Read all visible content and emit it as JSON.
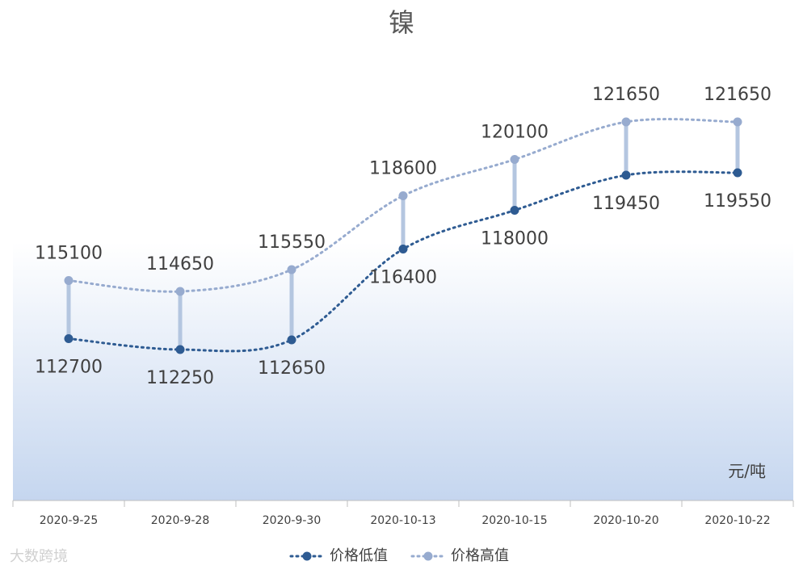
{
  "chart_data": {
    "type": "line",
    "title": "镍",
    "unit": "元/吨",
    "watermark": "大数跨境",
    "categories": [
      "2020-9-25",
      "2020-9-28",
      "2020-9-30",
      "2020-10-13",
      "2020-10-15",
      "2020-10-20",
      "2020-10-22"
    ],
    "series": [
      {
        "name": "价格低值",
        "color": "#2e5b92",
        "values": [
          112700,
          112250,
          112650,
          116400,
          118000,
          119450,
          119550
        ]
      },
      {
        "name": "价格高值",
        "color": "#97abcf",
        "values": [
          115100,
          114650,
          115550,
          118600,
          120100,
          121650,
          121650
        ]
      }
    ],
    "high_low_lines": true
  }
}
